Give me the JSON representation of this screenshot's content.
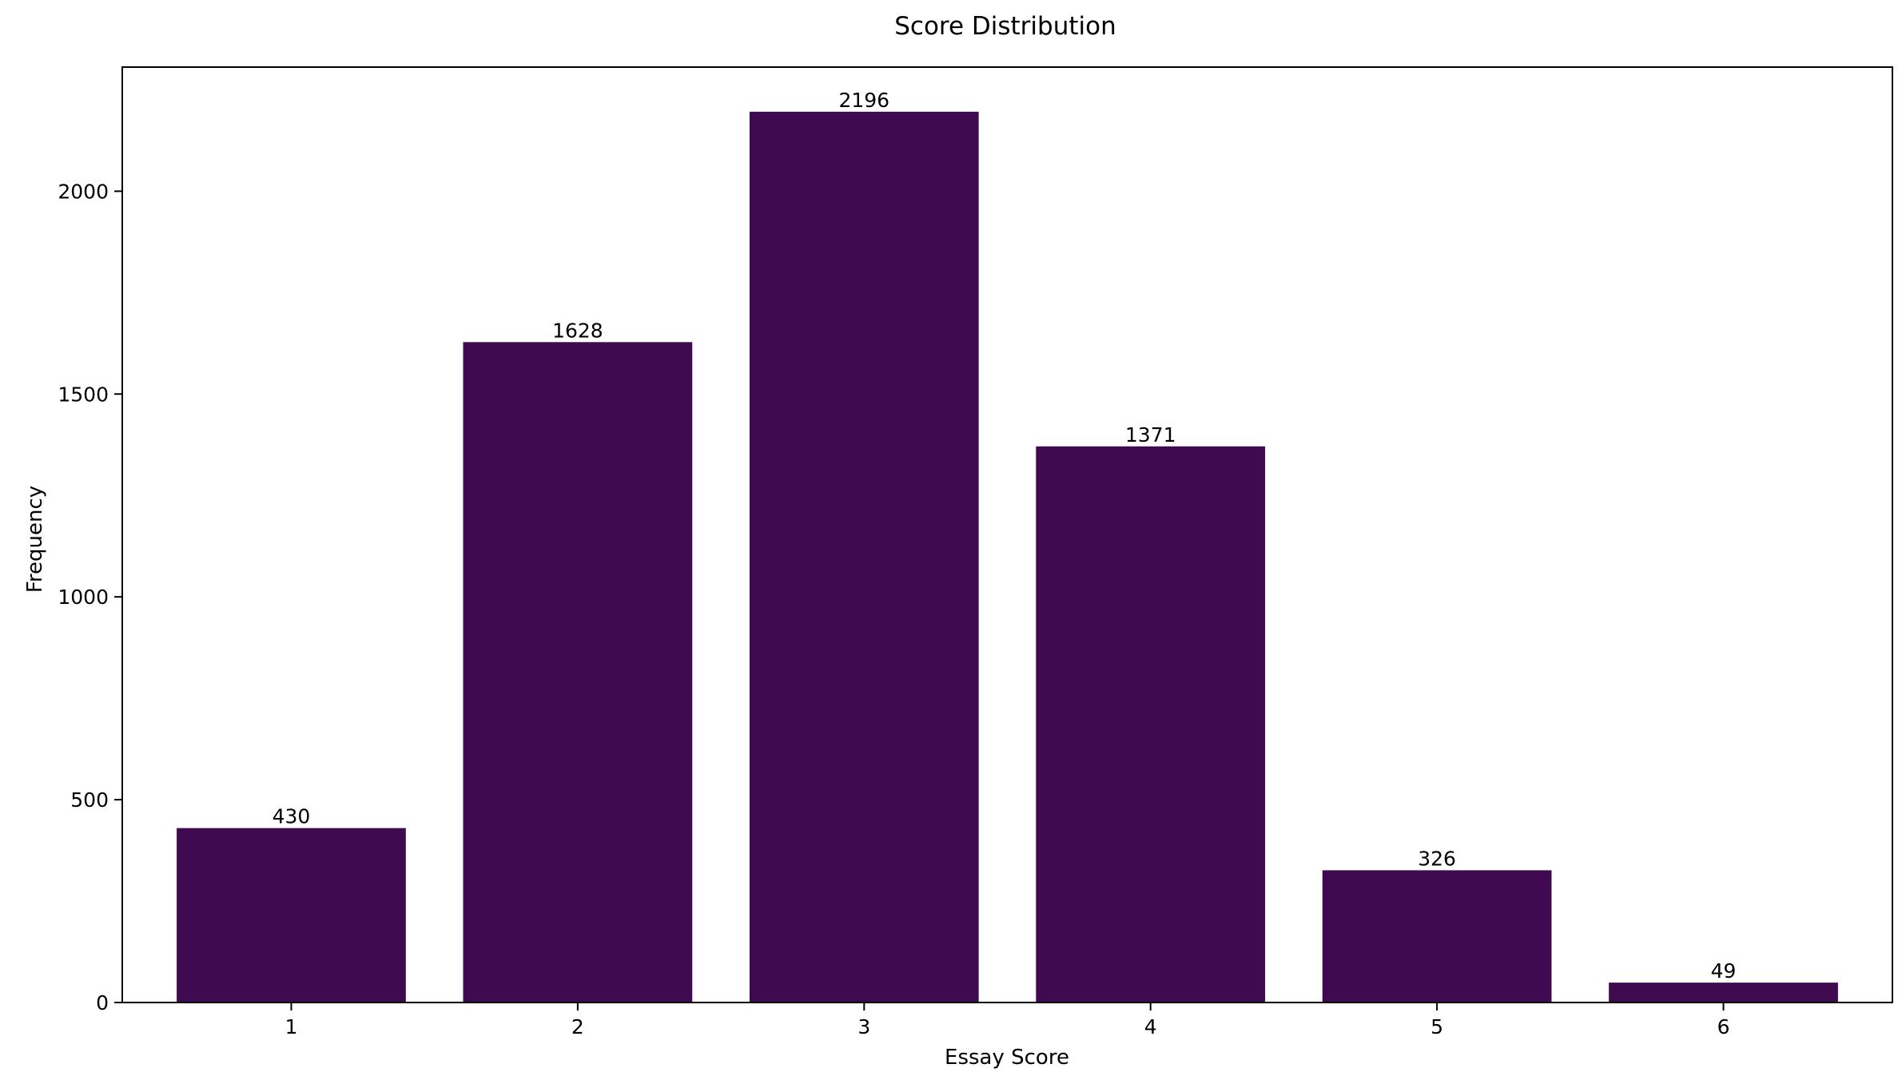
{
  "chart_data": {
    "type": "bar",
    "title": "Score Distribution",
    "xlabel": "Essay Score",
    "ylabel": "Frequency",
    "categories": [
      "1",
      "2",
      "3",
      "4",
      "5",
      "6"
    ],
    "values": [
      430,
      1628,
      2196,
      1371,
      326,
      49
    ],
    "data_labels": [
      "430",
      "1628",
      "2196",
      "1371",
      "326",
      "49"
    ],
    "yticks": [
      0,
      500,
      1000,
      1500,
      2000
    ],
    "ytick_labels": [
      "0",
      "500",
      "1000",
      "1500",
      "2000"
    ],
    "ylim": [
      0,
      2306
    ],
    "bar_color": "#3f0a4f",
    "grid": false,
    "legend": "none"
  }
}
